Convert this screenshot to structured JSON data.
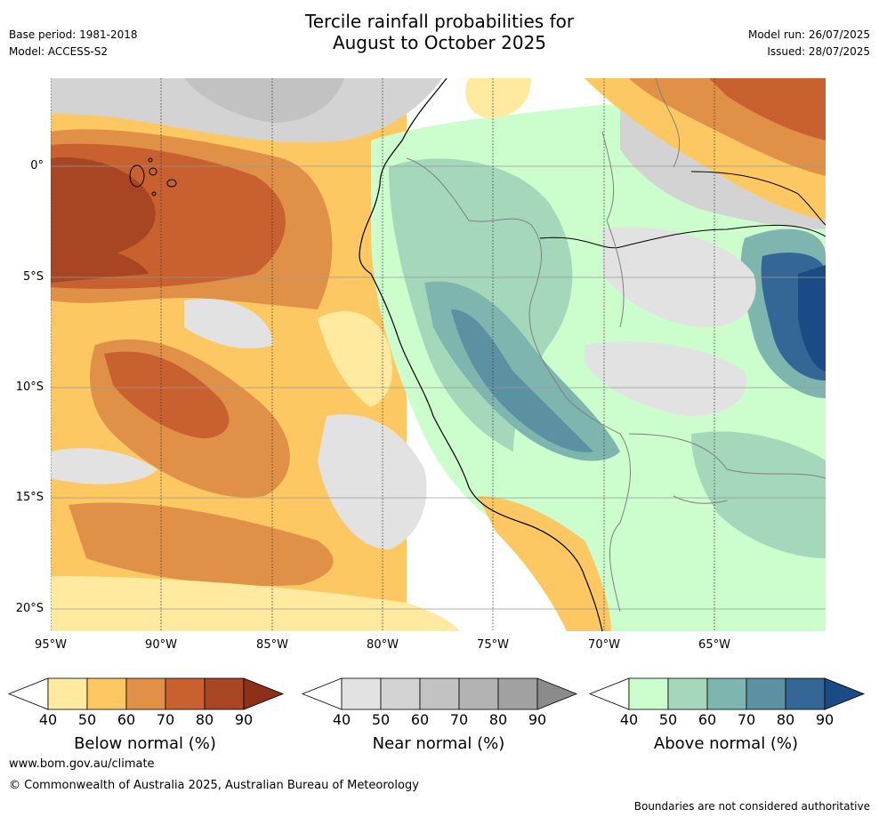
{
  "title_line1": "Tercile rainfall probabilities for",
  "title_line2": "August to October 2025",
  "base_period": "Base period: 1981-2018",
  "model": "Model: ACCESS-S2",
  "model_run": "Model run: 26/07/2025",
  "issued": "Issued: 28/07/2025",
  "lat_labels": [
    "0°",
    "5°S",
    "10°S",
    "15°S",
    "20°S"
  ],
  "lon_labels": [
    "95°W",
    "90°W",
    "85°W",
    "80°W",
    "75°W",
    "70°W",
    "65°W"
  ],
  "colorbars": [
    {
      "title": "Below normal (%)",
      "ticks": [
        "40",
        "50",
        "60",
        "70",
        "80",
        "90"
      ],
      "colors": [
        "#ffeaa0",
        "#fdc862",
        "#e09147",
        "#c8612f",
        "#a84623",
        "#8c3018"
      ]
    },
    {
      "title": "Near normal (%)",
      "ticks": [
        "40",
        "50",
        "60",
        "70",
        "80",
        "90"
      ],
      "colors": [
        "#e2e2e2",
        "#d3d3d3",
        "#c2c2c2",
        "#b3b3b3",
        "#a1a1a1",
        "#8b8b8b"
      ]
    },
    {
      "title": "Above normal (%)",
      "ticks": [
        "40",
        "50",
        "60",
        "70",
        "80",
        "90"
      ],
      "colors": [
        "#ccfdcc",
        "#a5d8bb",
        "#7fb5af",
        "#5b91a0",
        "#346796",
        "#1a4b84"
      ]
    }
  ],
  "footer_url": "www.bom.gov.au/climate",
  "footer_copyright": "© Commonwealth of Australia 2025, Australian Bureau of Meteorology",
  "footer_disclaimer": "Boundaries are not considered authoritative"
}
